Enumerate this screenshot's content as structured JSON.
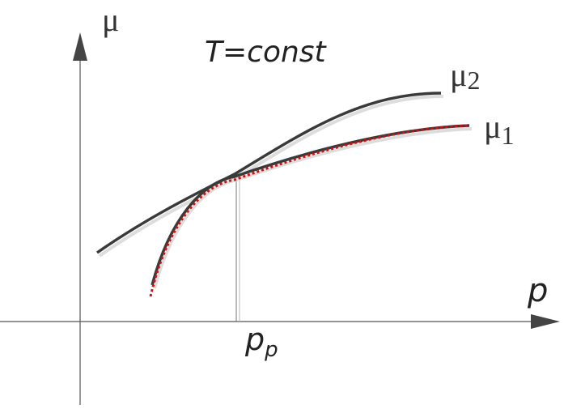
{
  "y_axis": {
    "label": "μ"
  },
  "annotation": "T=const",
  "curves": [
    {
      "symbol": "μ",
      "subscript": "2"
    },
    {
      "symbol": "μ",
      "subscript": "1"
    }
  ],
  "x_axis": {
    "label": "p"
  },
  "point": {
    "symbol": "p",
    "subscript": "p"
  }
}
